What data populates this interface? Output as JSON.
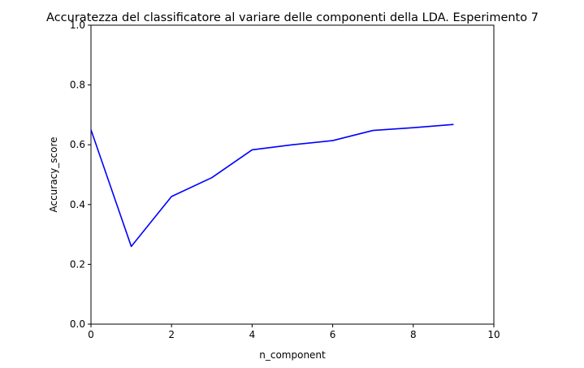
{
  "chart_data": {
    "type": "line",
    "title": "Accuratezza del classificatore al variare delle componenti della LDA. Esperimento 7",
    "xlabel": "n_component",
    "ylabel": "Accuracy_score",
    "xlim": [
      0,
      10
    ],
    "ylim": [
      0.0,
      1.0
    ],
    "xticks": [
      0,
      2,
      4,
      6,
      8,
      10
    ],
    "xtick_labels": [
      "0",
      "2",
      "4",
      "6",
      "8",
      "10"
    ],
    "yticks": [
      0.0,
      0.2,
      0.4,
      0.6,
      0.8,
      1.0
    ],
    "ytick_labels": [
      "0.0",
      "0.2",
      "0.4",
      "0.6",
      "0.8",
      "1.0"
    ],
    "grid": false,
    "series": [
      {
        "color": "#0000ff",
        "x": [
          0,
          1,
          2,
          3,
          4,
          5,
          6,
          7,
          8,
          9
        ],
        "y": [
          0.65,
          0.26,
          0.427,
          0.49,
          0.583,
          0.6,
          0.614,
          0.648,
          0.657,
          0.668
        ]
      }
    ]
  }
}
